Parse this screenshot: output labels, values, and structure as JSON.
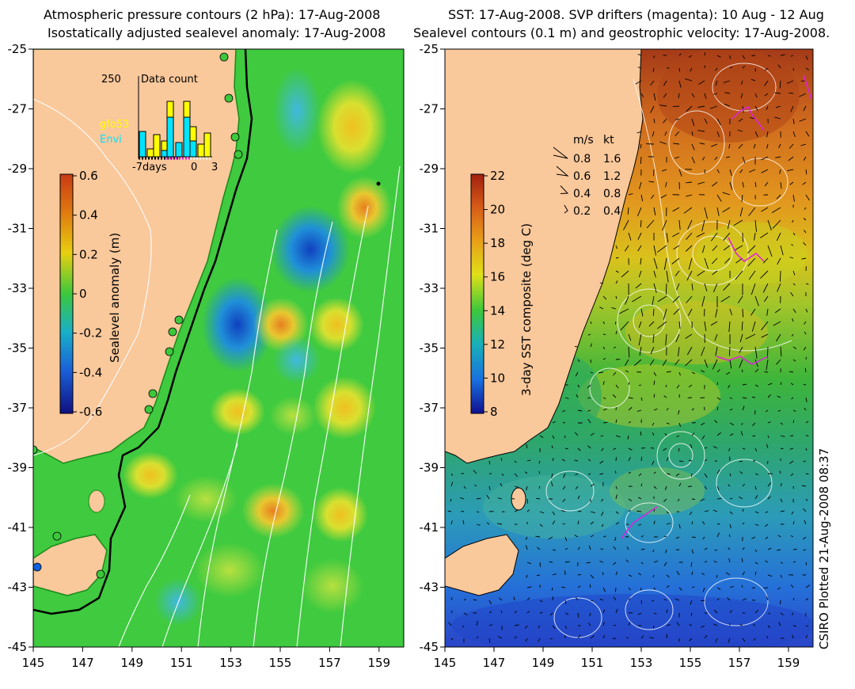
{
  "left_panel": {
    "title_line1": "Atmospheric pressure contours (2 hPa): 17-Aug-2008",
    "title_line2": "Isostatically adjusted sealevel anomaly: 17-Aug-2008",
    "colorbar": {
      "label": "Sealevel anomaly (m)",
      "ticks": [
        "0.6",
        "0.4",
        "0.2",
        "0",
        "-0.2",
        "-0.4",
        "-0.6"
      ]
    },
    "inset": {
      "title": "Data count",
      "y_max_label": "250",
      "x_labels": [
        "-7days",
        "0",
        "3"
      ],
      "legend": [
        {
          "name": "gfo53",
          "color": "#ffff00"
        },
        {
          "name": "Envi",
          "color": "#00e5ff"
        }
      ]
    }
  },
  "right_panel": {
    "title_line1": "SST: 17-Aug-2008. SVP drifters (magenta): 10 Aug - 12 Aug",
    "title_line2": "Sealevel contours (0.1 m) and geostrophic velocity: 17-Aug-2008.",
    "colorbar": {
      "label": "3-day SST composite (deg C)",
      "ticks": [
        "22",
        "20",
        "18",
        "16",
        "14",
        "12",
        "10",
        "8"
      ]
    },
    "speed_legend": {
      "header_ms": "m/s",
      "header_kt": "kt",
      "rows": [
        {
          "ms": "0.8",
          "kt": "1.6"
        },
        {
          "ms": "0.6",
          "kt": "1.2"
        },
        {
          "ms": "0.4",
          "kt": "0.8"
        },
        {
          "ms": "0.2",
          "kt": "0.4"
        }
      ]
    }
  },
  "axes": {
    "lat_labels": [
      "-25",
      "-27",
      "-29",
      "-31",
      "-33",
      "-35",
      "-37",
      "-39",
      "-41",
      "-43",
      "-45"
    ],
    "lon_labels": [
      "145",
      "147",
      "149",
      "151",
      "153",
      "155",
      "157",
      "159"
    ]
  },
  "footer": {
    "credit": "CSIRO Plotted 21-Aug-2008 08:37"
  },
  "colors": {
    "land": "#f9c89b",
    "ocean_green": "#3fca3f",
    "sst_orange": "#e08a20"
  }
}
